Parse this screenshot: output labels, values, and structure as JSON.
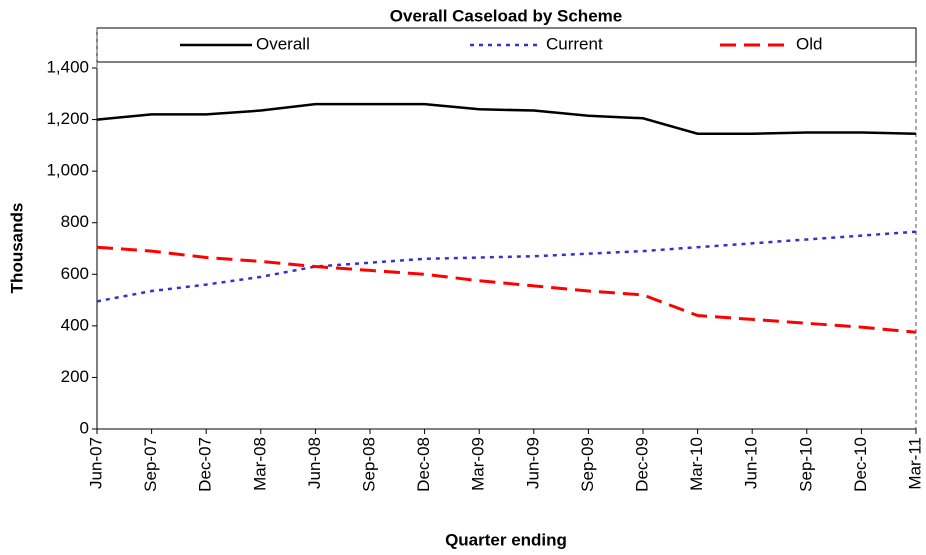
{
  "chart_data": {
    "type": "line",
    "title": "Overall Caseload by Scheme",
    "x_label": "Quarter ending",
    "y_label": "Thousands",
    "categories": [
      "Jun-07",
      "Sep-07",
      "Dec-07",
      "Mar-08",
      "Jun-08",
      "Sep-08",
      "Dec-08",
      "Mar-09",
      "Jun-09",
      "Sep-09",
      "Dec-09",
      "Mar-10",
      "Jun-10",
      "Sep-10",
      "Dec-10",
      "Mar-11"
    ],
    "series": [
      {
        "name": "Overall",
        "color": "#000000",
        "values": [
          1200,
          1220,
          1220,
          1235,
          1260,
          1260,
          1260,
          1240,
          1235,
          1215,
          1205,
          1145,
          1145,
          1150,
          1150,
          1145
        ]
      },
      {
        "name": "Current",
        "color": "#3333cc",
        "values": [
          495,
          535,
          560,
          590,
          630,
          645,
          660,
          665,
          670,
          680,
          690,
          705,
          720,
          735,
          750,
          765
        ]
      },
      {
        "name": "Old",
        "color": "#ff0000",
        "values": [
          705,
          690,
          665,
          650,
          630,
          615,
          600,
          575,
          555,
          535,
          520,
          440,
          425,
          410,
          395,
          375
        ]
      }
    ],
    "ylim": [
      0,
      1400
    ],
    "yticks": [
      0,
      200,
      400,
      600,
      800,
      {
        "value": 1000,
        "label": "1,000"
      },
      {
        "value": 1200,
        "label": "1,200"
      },
      {
        "value": 1400,
        "label": "1,400"
      }
    ],
    "legend": "top"
  }
}
